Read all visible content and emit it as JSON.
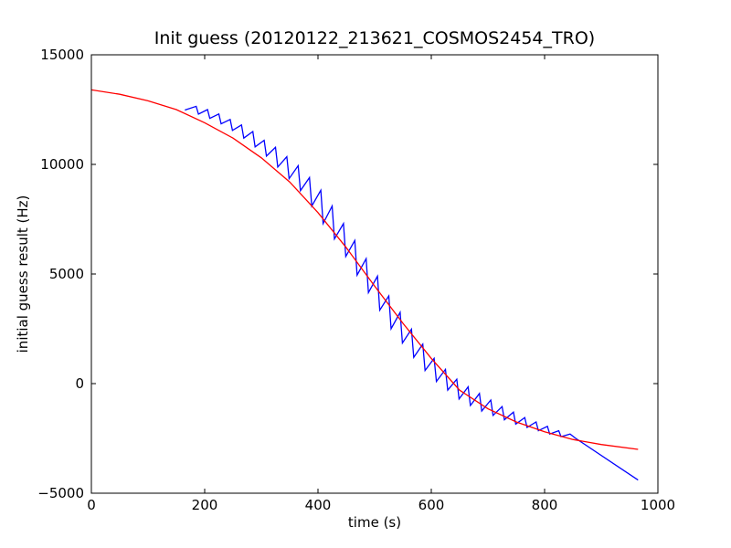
{
  "chart_data": {
    "type": "line",
    "title": "Init guess (20120122_213621_COSMOS2454_TRO)",
    "xlabel": "time (s)",
    "ylabel": "initial guess result (Hz)",
    "xlim": [
      0,
      1000
    ],
    "ylim": [
      -5000,
      15000
    ],
    "xticks": [
      0,
      200,
      400,
      600,
      800,
      1000
    ],
    "yticks": [
      -5000,
      0,
      5000,
      10000,
      15000
    ],
    "grid": false,
    "legend": "none",
    "series": [
      {
        "color": "#0000ff",
        "style": "sawtooth",
        "x": [
          165,
          185,
          189,
          205,
          209,
          225,
          229,
          245,
          249,
          265,
          269,
          285,
          289,
          305,
          309,
          325,
          329,
          345,
          349,
          365,
          369,
          385,
          389,
          405,
          409,
          425,
          429,
          445,
          449,
          465,
          469,
          485,
          489,
          505,
          509,
          525,
          529,
          545,
          549,
          565,
          569,
          585,
          589,
          605,
          609,
          625,
          629,
          645,
          649,
          665,
          669,
          685,
          689,
          705,
          709,
          725,
          729,
          745,
          749,
          765,
          769,
          785,
          789,
          805,
          809,
          825,
          829,
          845,
          855,
          965
        ],
        "y": [
          12480,
          12650,
          12290,
          12500,
          12100,
          12300,
          11850,
          12050,
          11550,
          11800,
          11200,
          11500,
          10800,
          11100,
          10380,
          10780,
          9880,
          10350,
          9350,
          9940,
          8800,
          9400,
          8100,
          8820,
          7300,
          8100,
          6600,
          7300,
          5800,
          6530,
          4950,
          5700,
          4150,
          4900,
          3350,
          4000,
          2500,
          3250,
          1850,
          2480,
          1200,
          1800,
          600,
          1150,
          100,
          650,
          -300,
          200,
          -700,
          -150,
          -1000,
          -450,
          -1250,
          -750,
          -1450,
          -1050,
          -1650,
          -1300,
          -1850,
          -1550,
          -2000,
          -1750,
          -2150,
          -1950,
          -2300,
          -2150,
          -2420,
          -2300,
          -2500,
          -4400
        ]
      },
      {
        "color": "#ff0000",
        "style": "smooth",
        "x": [
          0,
          50,
          100,
          150,
          200,
          250,
          300,
          350,
          400,
          450,
          500,
          550,
          600,
          650,
          700,
          750,
          800,
          850,
          900,
          965
        ],
        "y": [
          13400,
          13200,
          12900,
          12500,
          11900,
          11200,
          10300,
          9200,
          7800,
          6200,
          4450,
          2750,
          1150,
          -300,
          -1150,
          -1750,
          -2200,
          -2550,
          -2780,
          -3000
        ]
      }
    ]
  }
}
